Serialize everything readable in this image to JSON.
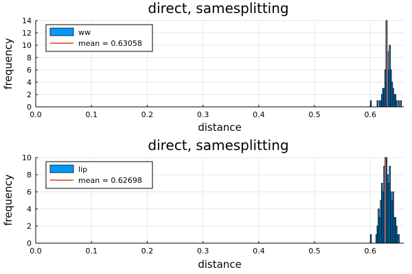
{
  "colors": {
    "bar_fill": "#009af9",
    "bar_edge": "#000000",
    "mean_line": "#e26f46",
    "grid": "#e6e6e6"
  },
  "chart_data": [
    {
      "type": "bar",
      "title": "direct, samesplitting",
      "xlabel": "distance",
      "ylabel": "frequency",
      "xlim": [
        0.0,
        0.66
      ],
      "ylim": [
        0,
        14
      ],
      "xticks": [
        "0.0",
        "0.1",
        "0.2",
        "0.3",
        "0.4",
        "0.5",
        "0.6"
      ],
      "yticks": [
        "0",
        "2",
        "4",
        "6",
        "8",
        "10",
        "12",
        "14"
      ],
      "grid": true,
      "legend_position": "top-left",
      "series": [
        {
          "name": "ww",
          "bins": [
            0.6,
            0.612,
            0.614,
            0.616,
            0.618,
            0.62,
            0.622,
            0.624,
            0.626,
            0.628,
            0.63,
            0.632,
            0.634,
            0.636,
            0.638,
            0.64,
            0.642,
            0.644,
            0.646,
            0.648,
            0.65,
            0.652,
            0.654
          ],
          "values": [
            1,
            1,
            0,
            1,
            1,
            2,
            3,
            3,
            6,
            14,
            9,
            6,
            10,
            6,
            4,
            3,
            2,
            2,
            1,
            0,
            1,
            0,
            1
          ]
        }
      ],
      "mean": {
        "label": "mean = 0.63058",
        "value": 0.63058
      }
    },
    {
      "type": "bar",
      "title": "direct, samesplitting",
      "xlabel": "distance",
      "ylabel": "frequency",
      "xlim": [
        0.0,
        0.66
      ],
      "ylim": [
        0,
        10
      ],
      "xticks": [
        "0.0",
        "0.1",
        "0.2",
        "0.3",
        "0.4",
        "0.5",
        "0.6"
      ],
      "yticks": [
        "0",
        "2",
        "4",
        "6",
        "8",
        "10"
      ],
      "grid": true,
      "legend_position": "top-left",
      "series": [
        {
          "name": "lip",
          "bins": [
            0.6,
            0.61,
            0.612,
            0.614,
            0.616,
            0.618,
            0.62,
            0.622,
            0.624,
            0.626,
            0.628,
            0.63,
            0.632,
            0.634,
            0.636,
            0.638,
            0.64,
            0.642,
            0.644,
            0.646,
            0.648,
            0.65
          ],
          "values": [
            1,
            1,
            2,
            4,
            3,
            5,
            7,
            6,
            9,
            10,
            10,
            8,
            7,
            9,
            6,
            5,
            6,
            3,
            3,
            2,
            1,
            1
          ]
        }
      ],
      "mean": {
        "label": "mean = 0.62698",
        "value": 0.62698
      }
    }
  ]
}
